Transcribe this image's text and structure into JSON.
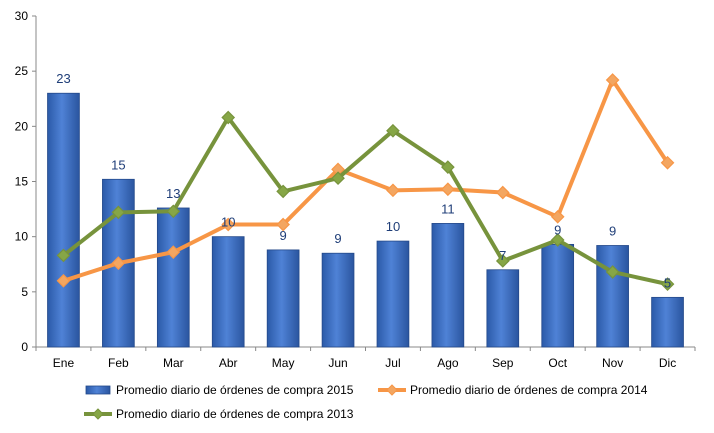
{
  "chart_data": {
    "type": "bar",
    "categories": [
      "Ene",
      "Feb",
      "Mar",
      "Abr",
      "May",
      "Jun",
      "Jul",
      "Ago",
      "Sep",
      "Oct",
      "Nov",
      "Dic"
    ],
    "ylim": [
      0,
      30
    ],
    "yticks": [
      0,
      5,
      10,
      15,
      20,
      25,
      30
    ],
    "grid": false,
    "legend_position": "bottom",
    "series": [
      {
        "name": "Promedio diario de órdenes de compra 2015",
        "type": "bar",
        "color": "#3c6fc4",
        "values": [
          23,
          15.2,
          12.6,
          10,
          8.8,
          8.5,
          9.6,
          11.2,
          7,
          9.3,
          9.2,
          4.5
        ],
        "data_labels": [
          "23",
          "15",
          "13",
          "10",
          "9",
          "9",
          "10",
          "11",
          "7",
          "9",
          "9",
          "5"
        ]
      },
      {
        "name": "Promedio diario de órdenes de compra 2014",
        "type": "line",
        "color": "#f79646",
        "marker_color": "#f3a661",
        "values": [
          6,
          7.6,
          8.6,
          11.1,
          11.1,
          16.1,
          14.2,
          14.3,
          14,
          11.8,
          24.2,
          16.7
        ]
      },
      {
        "name": "Promedio diario de órdenes de compra 2013",
        "type": "line",
        "color": "#77933c",
        "marker_color": "#86a646",
        "values": [
          8.3,
          12.2,
          12.3,
          20.8,
          14.1,
          15.3,
          19.6,
          16.3,
          7.8,
          9.7,
          6.8,
          5.7
        ]
      }
    ]
  }
}
